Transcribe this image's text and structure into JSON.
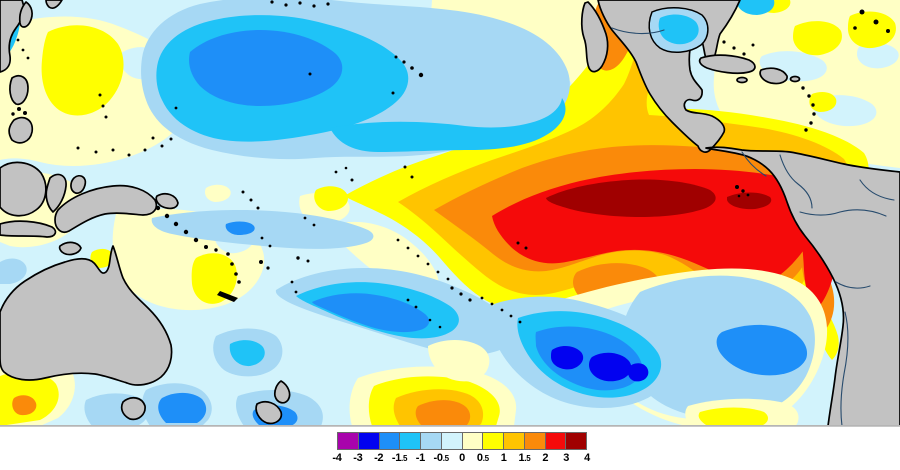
{
  "palette": {
    "m4": "#A803AC",
    "m3": "#0202F0",
    "m2": "#1E8FF8",
    "m15": "#1FC3F7",
    "m1": "#A6D8F4",
    "m05": "#D2F3FC",
    "p0": "#FFFFC5",
    "p05": "#FFFF00",
    "p1": "#FFC400",
    "p15": "#FA8A0A",
    "p2": "#F50A0A",
    "p3": "#A00000",
    "land": "#C2C2C2",
    "coast": "#000000",
    "navy": "#274B6D",
    "frame": "#B5B5B5"
  },
  "colorbar": {
    "tick_labels": [
      "-4",
      "-3",
      "-2",
      "-1.5",
      "-1",
      "-0.5",
      "0",
      "0.5",
      "1",
      "1.5",
      "2",
      "3",
      "4"
    ],
    "cells": [
      "m4",
      "m3",
      "m2",
      "m15",
      "m1",
      "m05",
      "p0",
      "p05",
      "p1",
      "p15",
      "p2",
      "p3"
    ]
  },
  "map_features": [
    {
      "name": "equatorial-pacific-warm-tongue",
      "anomaly_bin": "3 to 4",
      "palette_key": "p3"
    },
    {
      "name": "peru-coast-warm-band",
      "anomaly_bin": "3 to 4",
      "palette_key": "p3"
    },
    {
      "name": "north-pacific-cold-pool",
      "anomaly_bin": "-2 to -1.5",
      "palette_key": "m2"
    },
    {
      "name": "south-pacific-cold-pool",
      "anomaly_bin": "-3 to -2",
      "palette_key": "m3"
    },
    {
      "name": "southeast-pacific-cold-pool",
      "anomaly_bin": "-2 to -1.5",
      "palette_key": "m2"
    },
    {
      "name": "baja-california-warm-patch",
      "anomaly_bin": "1.5 to 2",
      "palette_key": "p15"
    }
  ]
}
